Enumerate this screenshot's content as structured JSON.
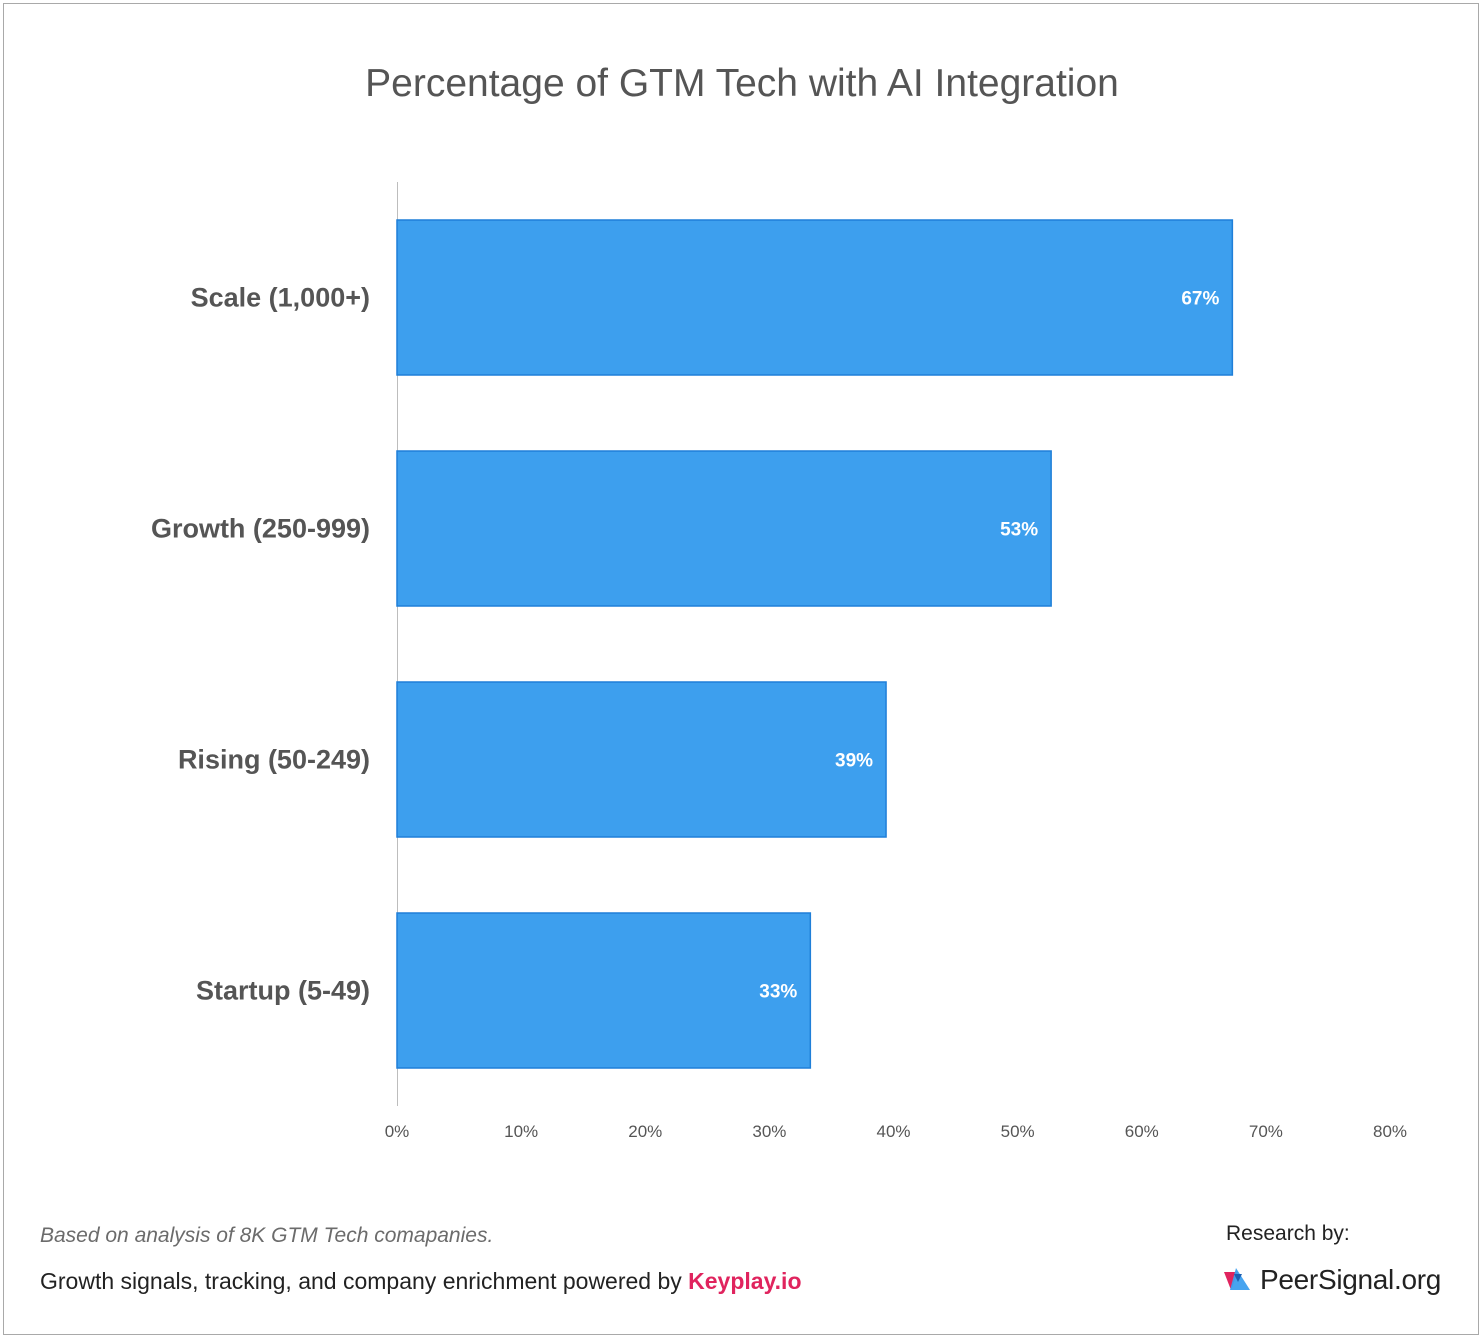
{
  "chart_data": {
    "type": "bar",
    "orientation": "horizontal",
    "title": "Percentage of GTM Tech with AI Integration",
    "categories": [
      "Scale (1,000+)",
      "Growth (250-999)",
      "Rising (50-249)",
      "Startup (5-49)"
    ],
    "values": [
      67.3,
      52.7,
      39.4,
      33.3
    ],
    "data_labels": [
      "67%",
      "53%",
      "39%",
      "33%"
    ],
    "xlim": [
      0,
      80
    ],
    "x_ticks": [
      0,
      10,
      20,
      30,
      40,
      50,
      60,
      70,
      80
    ],
    "x_tick_labels": [
      "0%",
      "10%",
      "20%",
      "30%",
      "40%",
      "50%",
      "60%",
      "70%",
      "80%"
    ],
    "xlabel": "",
    "ylabel": "",
    "grid": false,
    "legend": "none",
    "bar_color": "#3d9fee",
    "bar_border_color": "#1f7fd8"
  },
  "footer": {
    "note": "Based on analysis of 8K GTM Tech comapanies.",
    "powered_prefix": "Growth signals, tracking, and company enrichment powered by ",
    "powered_brand": "Keyplay.io",
    "research_label": "Research by:",
    "logo_text": "PeerSignal.org",
    "brand_color": "#e0245e"
  }
}
